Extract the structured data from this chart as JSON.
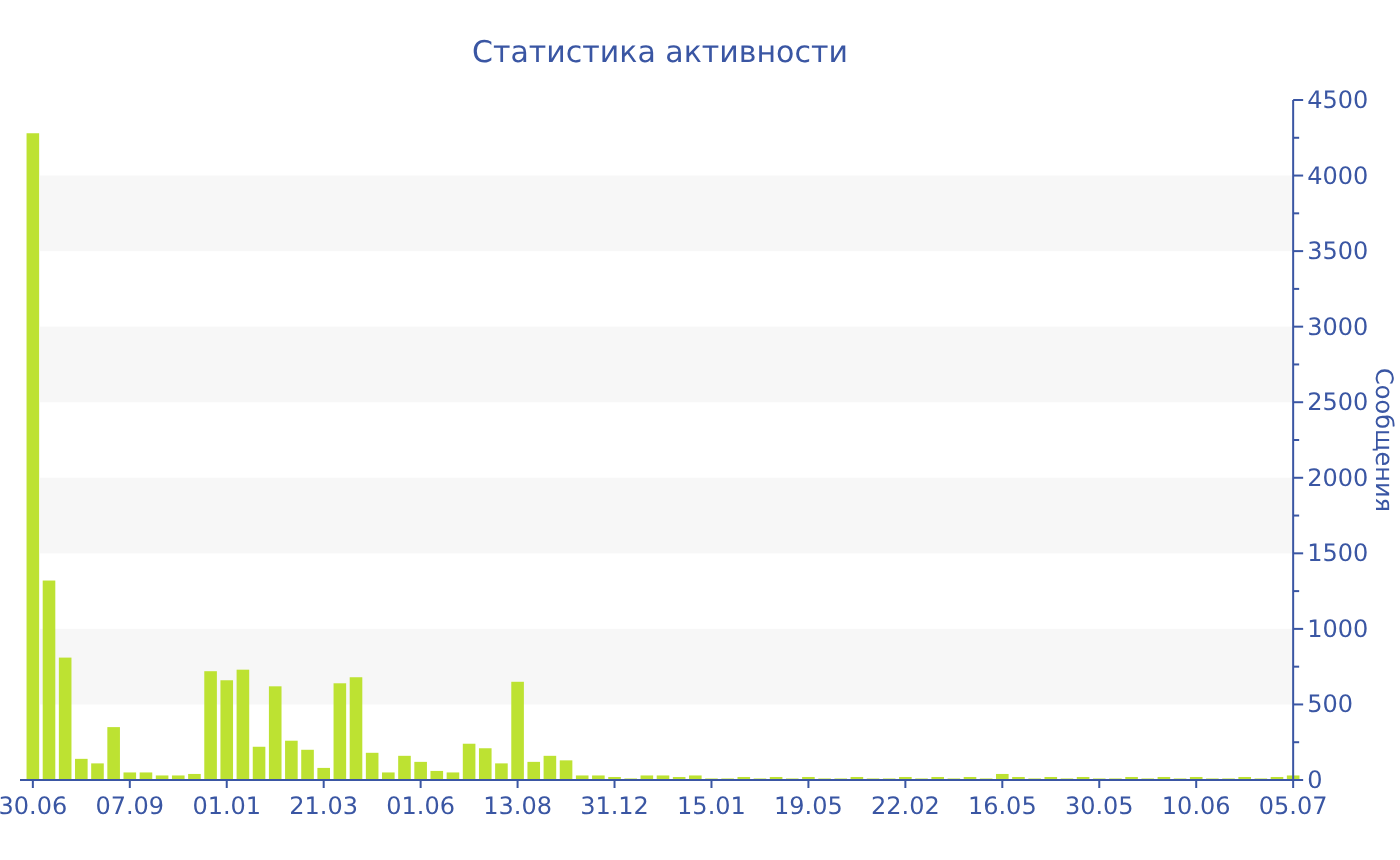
{
  "chart_data": {
    "type": "bar",
    "title": "Статистика активности",
    "ylabel": "Сообщения",
    "categories": [
      "30.06",
      null,
      null,
      null,
      null,
      null,
      "07.09",
      null,
      null,
      null,
      null,
      null,
      "01.01",
      null,
      null,
      null,
      null,
      null,
      "21.03",
      null,
      null,
      null,
      null,
      null,
      "01.06",
      null,
      null,
      null,
      null,
      null,
      "13.08",
      null,
      null,
      null,
      null,
      null,
      "31.12",
      null,
      null,
      null,
      null,
      null,
      "15.01",
      null,
      null,
      null,
      null,
      null,
      "19.05",
      null,
      null,
      null,
      null,
      null,
      "22.02",
      null,
      null,
      null,
      null,
      null,
      "16.05",
      null,
      null,
      null,
      null,
      null,
      "30.05",
      null,
      null,
      null,
      null,
      null,
      "10.06",
      null,
      null,
      null,
      null,
      null,
      "05.07"
    ],
    "values": [
      4280,
      1320,
      810,
      140,
      110,
      350,
      50,
      50,
      30,
      30,
      40,
      720,
      660,
      730,
      220,
      620,
      260,
      200,
      80,
      640,
      680,
      180,
      50,
      160,
      120,
      60,
      50,
      240,
      210,
      110,
      650,
      120,
      160,
      130,
      30,
      30,
      20,
      10,
      30,
      30,
      20,
      30,
      10,
      10,
      20,
      10,
      20,
      10,
      20,
      10,
      10,
      20,
      10,
      10,
      20,
      10,
      20,
      10,
      20,
      10,
      40,
      20,
      10,
      20,
      10,
      20,
      10,
      10,
      20,
      10,
      20,
      10,
      20,
      10,
      10,
      20,
      10,
      20,
      30
    ],
    "color": "#bde232",
    "ylim": [
      0,
      4500
    ],
    "yticks": [
      0,
      {
        "value": 250,
        "label": null
      },
      500,
      {
        "value": 750,
        "label": null
      },
      1000,
      {
        "value": 1250,
        "label": null
      },
      1500,
      {
        "value": 1750,
        "label": null
      },
      2000,
      {
        "value": 2250,
        "label": null
      },
      2500,
      {
        "value": 2750,
        "label": null
      },
      3000,
      {
        "value": 3250,
        "label": null
      },
      3500,
      {
        "value": 3750,
        "label": null
      },
      4000,
      {
        "value": 4250,
        "label": null
      },
      4500
    ],
    "bands": [
      {
        "axis": "y",
        "from": 500,
        "to": 1000,
        "color": "#f7f7f7"
      },
      {
        "axis": "y",
        "from": 1500,
        "to": 2000,
        "color": "#f7f7f7"
      },
      {
        "axis": "y",
        "from": 2500,
        "to": 3000,
        "color": "#f7f7f7"
      },
      {
        "axis": "y",
        "from": 3500,
        "to": 4000,
        "color": "#f7f7f7"
      }
    ]
  }
}
